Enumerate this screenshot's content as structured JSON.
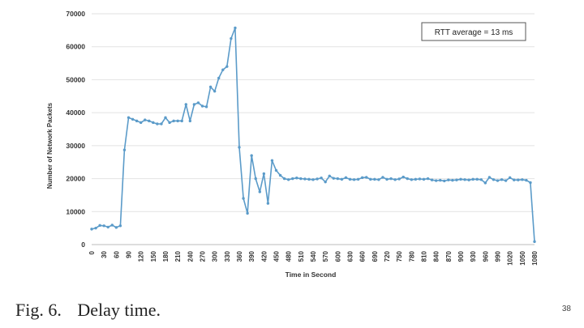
{
  "chart_data": {
    "type": "line",
    "xlabel": "Time in Second",
    "ylabel": "Number of Network Packets",
    "ylim": [
      0,
      70000
    ],
    "yticks": [
      0,
      10000,
      20000,
      30000,
      40000,
      50000,
      60000,
      70000
    ],
    "xlim": [
      0,
      1080
    ],
    "xticks": [
      0,
      30,
      60,
      90,
      120,
      150,
      180,
      210,
      240,
      270,
      300,
      330,
      360,
      390,
      420,
      450,
      480,
      510,
      540,
      570,
      600,
      630,
      660,
      690,
      720,
      750,
      780,
      810,
      840,
      870,
      900,
      930,
      960,
      990,
      1020,
      1050,
      1080
    ],
    "grid": "horizontal",
    "annotation": "RTT average = 13 ms",
    "annotation_position": "top-right",
    "color": "#5b9bc9",
    "x": [
      0,
      10,
      20,
      30,
      40,
      50,
      60,
      70,
      80,
      90,
      100,
      110,
      120,
      130,
      140,
      150,
      160,
      170,
      180,
      190,
      200,
      210,
      220,
      230,
      240,
      250,
      260,
      270,
      280,
      290,
      300,
      310,
      320,
      330,
      340,
      350,
      360,
      370,
      380,
      390,
      400,
      410,
      420,
      430,
      440,
      450,
      460,
      470,
      480,
      490,
      500,
      510,
      520,
      530,
      540,
      550,
      560,
      570,
      580,
      590,
      600,
      610,
      620,
      630,
      640,
      650,
      660,
      670,
      680,
      690,
      700,
      710,
      720,
      730,
      740,
      750,
      760,
      770,
      780,
      790,
      800,
      810,
      820,
      830,
      840,
      850,
      860,
      870,
      880,
      890,
      900,
      910,
      920,
      930,
      940,
      950,
      960,
      970,
      980,
      990,
      1000,
      1010,
      1020,
      1030,
      1040,
      1050,
      1060,
      1070,
      1080
    ],
    "y": [
      4700,
      5000,
      5800,
      5700,
      5300,
      5900,
      5200,
      5700,
      28700,
      38500,
      38000,
      37500,
      37000,
      37800,
      37500,
      37000,
      36600,
      36600,
      38500,
      37000,
      37500,
      37500,
      37500,
      42500,
      37500,
      42500,
      43000,
      42000,
      41800,
      47800,
      46500,
      50500,
      53000,
      54000,
      62500,
      65700,
      29500,
      14000,
      9500,
      27000,
      20000,
      16000,
      21500,
      12500,
      25500,
      22500,
      21000,
      20000,
      19700,
      20000,
      20200,
      20000,
      19900,
      19800,
      19700,
      19900,
      20200,
      19000,
      20800,
      20100,
      20000,
      19800,
      20300,
      19800,
      19700,
      19800,
      20300,
      20400,
      19800,
      19800,
      19700,
      20400,
      19800,
      20000,
      19700,
      19900,
      20500,
      20000,
      19700,
      19800,
      19900,
      19800,
      20000,
      19600,
      19400,
      19500,
      19300,
      19600,
      19500,
      19600,
      19800,
      19700,
      19600,
      19800,
      19800,
      19700,
      18700,
      20400,
      19700,
      19400,
      19700,
      19400,
      20300,
      19600,
      19600,
      19700,
      19500,
      18800,
      900
    ]
  },
  "caption": {
    "number": "Fig. 6.",
    "text": "Delay time."
  },
  "page_number": "38"
}
